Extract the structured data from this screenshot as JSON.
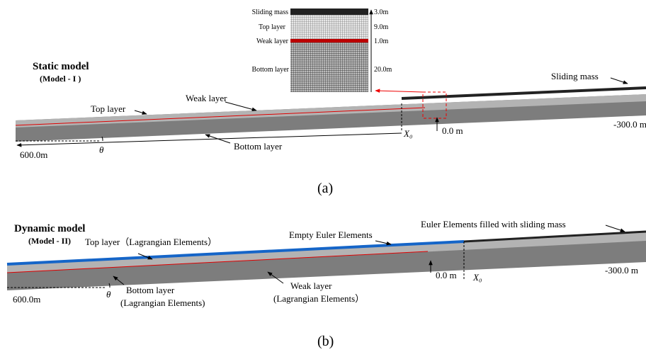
{
  "panel_a": {
    "title": "Static model",
    "subtitle": "(Model - I )",
    "inset": {
      "layers": [
        {
          "name": "Sliding mass",
          "thickness": "3.0m"
        },
        {
          "name": "Top layer",
          "thickness": "9.0m"
        },
        {
          "name": "Weak layer",
          "thickness": "1.0m"
        },
        {
          "name": "Bottom layer",
          "thickness": "20.0m"
        }
      ]
    },
    "labels": {
      "sliding_mass": "Sliding mass",
      "top_layer": "Top layer",
      "weak_layer": "Weak layer",
      "bottom_layer": "Bottom layer"
    },
    "x0": "X₀",
    "origin": "0.0 m",
    "right_end": "-300.0 m",
    "left_end": "600.0m",
    "angle": "θ",
    "caption": "(a)"
  },
  "panel_b": {
    "title": "Dynamic model",
    "subtitle": "(Model - II)",
    "labels": {
      "top_layer": "Top layer（Lagrangian Elements）",
      "empty_euler": "Empty Euler Elements",
      "filled_euler": "Euler Elements filled with sliding mass",
      "bottom_layer": "Bottom layer",
      "bottom_layer_note": "(Lagrangian Elements)",
      "weak_layer": "Weak layer",
      "weak_layer_note": "(Lagrangian Elements）"
    },
    "x0": "X₀",
    "origin": "0.0 m",
    "right_end": "-300.0 m",
    "left_end": "600.0m",
    "angle": "θ",
    "caption": "(b)"
  }
}
